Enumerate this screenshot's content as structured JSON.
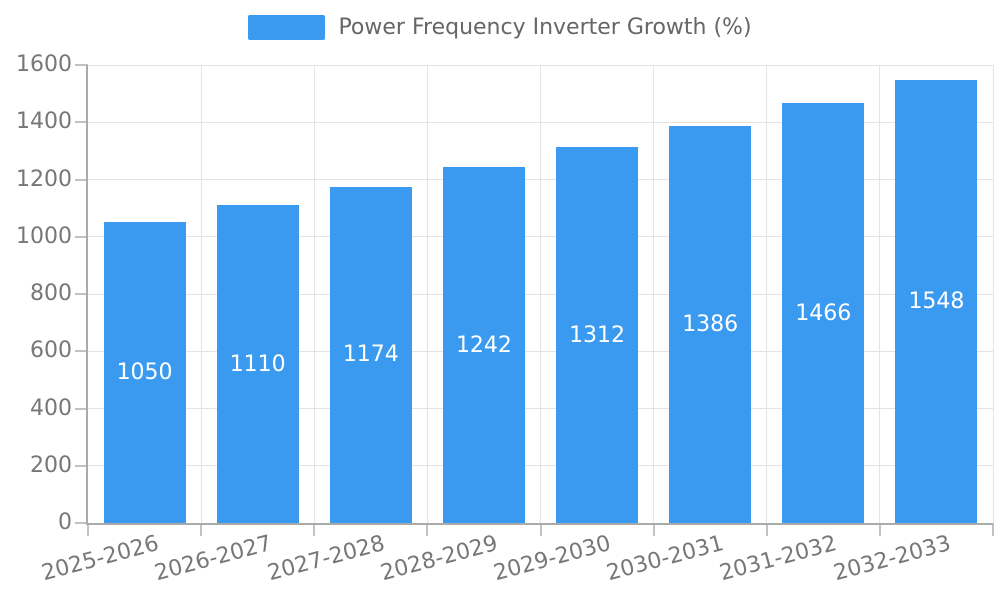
{
  "legend": {
    "label": "Power Frequency Inverter Growth (%)"
  },
  "colors": {
    "bar": "#3A9AEF",
    "bar_label": "#FFFFFF",
    "gridline": "#E4E4E4",
    "axis_line": "#AAAAAA",
    "tick_mark": "#C2C2C2",
    "tick_label": "#777777",
    "legend_text": "#666666",
    "background": "#FFFFFF"
  },
  "chart_data": {
    "type": "bar",
    "title": "Power Frequency Inverter Growth (%)",
    "categories": [
      "2025-2026",
      "2026-2027",
      "2027-2028",
      "2028-2029",
      "2029-2030",
      "2030-2031",
      "2031-2032",
      "2032-2033"
    ],
    "values": [
      1050,
      1110,
      1174,
      1242,
      1312,
      1386,
      1466,
      1548
    ],
    "series": [
      {
        "name": "Power Frequency Inverter Growth (%)",
        "values": [
          1050,
          1110,
          1174,
          1242,
          1312,
          1386,
          1466,
          1548
        ]
      }
    ],
    "xlabel": "",
    "ylabel": "",
    "ylim": [
      0,
      1600
    ],
    "yticks": [
      0,
      200,
      400,
      600,
      800,
      1000,
      1200,
      1400,
      1600
    ],
    "grid": true,
    "legend_position": "top-center",
    "x_tick_rotation_deg": -15,
    "bar_value_labels_inside": true
  }
}
